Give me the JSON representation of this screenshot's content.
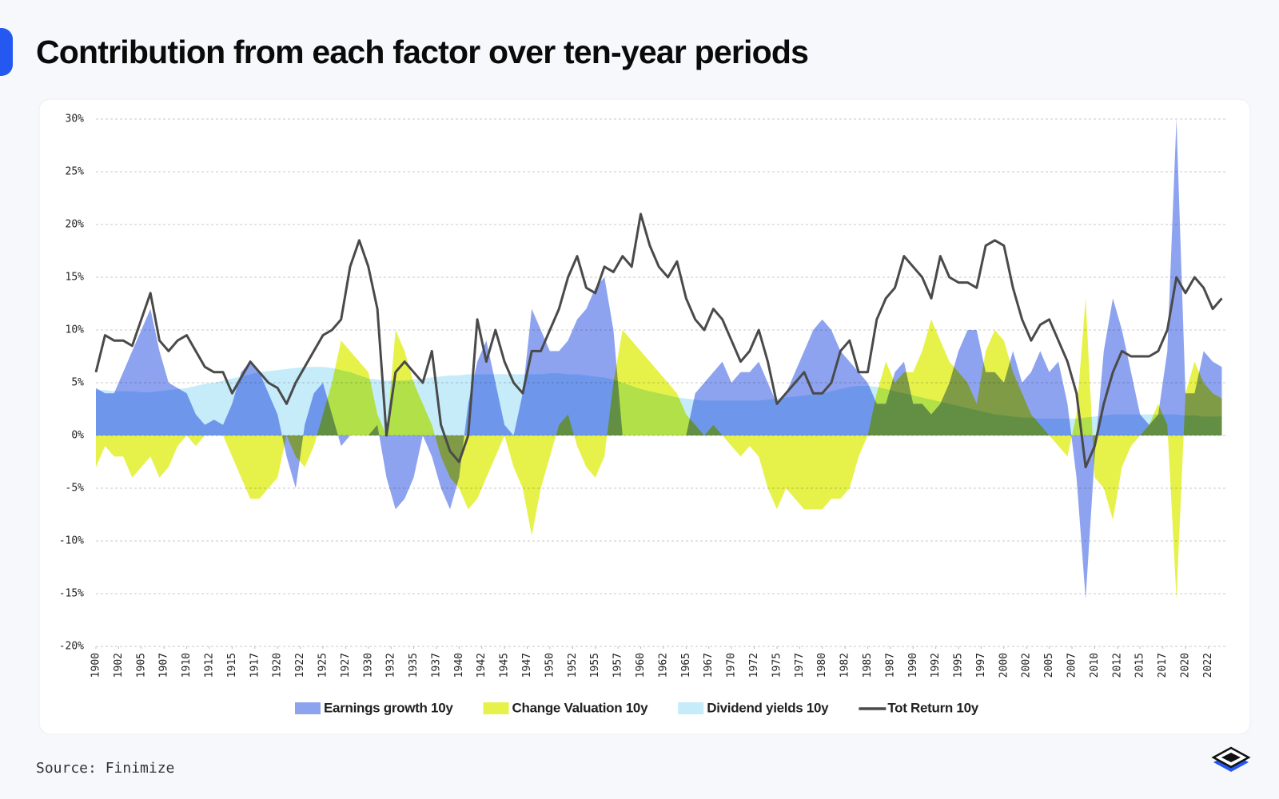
{
  "chart_data": {
    "type": "area",
    "title": "Contribution from each factor over ten-year periods",
    "source": "Source: Finimize",
    "x": [
      1900,
      1901,
      1902,
      1903,
      1904,
      1905,
      1906,
      1907,
      1908,
      1909,
      1910,
      1911,
      1912,
      1913,
      1914,
      1915,
      1916,
      1917,
      1918,
      1919,
      1920,
      1921,
      1922,
      1923,
      1924,
      1925,
      1926,
      1927,
      1928,
      1929,
      1930,
      1931,
      1932,
      1933,
      1934,
      1935,
      1936,
      1937,
      1938,
      1939,
      1940,
      1941,
      1942,
      1943,
      1944,
      1945,
      1946,
      1947,
      1948,
      1949,
      1950,
      1951,
      1952,
      1953,
      1954,
      1955,
      1956,
      1957,
      1958,
      1959,
      1960,
      1961,
      1962,
      1963,
      1964,
      1965,
      1966,
      1967,
      1968,
      1969,
      1970,
      1971,
      1972,
      1973,
      1974,
      1975,
      1976,
      1977,
      1978,
      1979,
      1980,
      1981,
      1982,
      1983,
      1984,
      1985,
      1986,
      1987,
      1988,
      1989,
      1990,
      1991,
      1992,
      1993,
      1994,
      1995,
      1996,
      1997,
      1998,
      1999,
      2000,
      2001,
      2002,
      2003,
      2004,
      2005,
      2006,
      2007,
      2008,
      2009,
      2010,
      2011,
      2012,
      2013,
      2014,
      2015,
      2016,
      2017,
      2018,
      2019,
      2020,
      2021,
      2022,
      2023,
      2024
    ],
    "series": [
      {
        "name": "Earnings growth 10y",
        "color": "#8ea3f0",
        "values": [
          4.5,
          4,
          4,
          6,
          8,
          10,
          12,
          8,
          5,
          4.5,
          4,
          2,
          1,
          1.5,
          1,
          3,
          6,
          7,
          6,
          4,
          2,
          -2,
          -5,
          1,
          4,
          5,
          2,
          -1,
          0,
          0,
          0,
          1,
          -4,
          -7,
          -6,
          -4,
          0,
          -2,
          -5,
          -7,
          -4,
          3,
          7,
          9,
          5,
          1,
          0,
          4,
          12,
          10,
          8,
          8,
          9,
          11,
          12,
          14,
          15,
          10,
          0,
          0,
          0,
          0,
          0,
          0,
          0,
          0,
          4,
          5,
          6,
          7,
          5,
          6,
          6,
          7,
          5,
          3,
          4,
          6,
          8,
          10,
          11,
          10,
          8,
          7,
          6,
          5,
          3,
          3,
          6,
          7,
          3,
          3,
          2,
          3,
          5,
          8,
          10,
          10,
          6,
          6,
          5,
          8,
          5,
          6,
          8,
          6,
          7,
          3,
          -4,
          -15.5,
          -2,
          8,
          13,
          10,
          6,
          2,
          1,
          2,
          8,
          30,
          4,
          4,
          8,
          7,
          6.5
        ]
      },
      {
        "name": "Change Valuation 10y",
        "color": "#e6f24a",
        "values": [
          -3,
          -1,
          -2,
          -2,
          -4,
          -3,
          -2,
          -4,
          -3,
          -1,
          0,
          -1,
          0,
          0,
          0,
          -2,
          -4,
          -6,
          -6,
          -5,
          -4,
          0,
          -2,
          -3,
          -1,
          2,
          5,
          9,
          8,
          7,
          6,
          2,
          0,
          10,
          8,
          5,
          3,
          1,
          -2,
          -4,
          -5,
          -7,
          -6,
          -4,
          -2,
          0,
          -3,
          -5,
          -9.5,
          -5,
          -2,
          1,
          2,
          -1,
          -3,
          -4,
          -2,
          5,
          10,
          9,
          8,
          7,
          6,
          5,
          4,
          2,
          1,
          0,
          1,
          0,
          -1,
          -2,
          -1,
          -2,
          -5,
          -7,
          -5,
          -6,
          -7,
          -7,
          -7,
          -6,
          -6,
          -5,
          -2,
          0,
          4,
          7,
          5,
          6,
          6,
          8,
          11,
          9,
          7,
          6,
          5,
          3,
          8,
          10,
          9,
          6,
          4,
          2,
          1,
          0,
          -1,
          -2,
          2,
          13,
          -4,
          -5,
          -8,
          -3,
          -1,
          0,
          1,
          3,
          1,
          -15.5,
          4,
          7,
          5,
          4,
          3.5
        ]
      },
      {
        "name": "Dividend yields 10y",
        "color": "#c6ecfa",
        "values": [
          4.3,
          4.3,
          4.2,
          4.2,
          4.2,
          4.1,
          4.1,
          4.2,
          4.3,
          4.4,
          4.5,
          4.7,
          4.9,
          5.0,
          5.2,
          5.4,
          5.6,
          5.8,
          6.0,
          6.1,
          6.2,
          6.3,
          6.4,
          6.5,
          6.5,
          6.5,
          6.4,
          6.2,
          6.0,
          5.7,
          5.4,
          5.3,
          5.2,
          5.2,
          5.2,
          5.3,
          5.4,
          5.5,
          5.6,
          5.7,
          5.7,
          5.8,
          5.8,
          5.8,
          5.8,
          5.8,
          5.8,
          5.8,
          5.8,
          5.8,
          5.9,
          5.9,
          5.8,
          5.8,
          5.7,
          5.6,
          5.5,
          5.3,
          5.0,
          4.7,
          4.4,
          4.2,
          4.0,
          3.8,
          3.6,
          3.5,
          3.4,
          3.3,
          3.3,
          3.3,
          3.3,
          3.3,
          3.3,
          3.3,
          3.4,
          3.5,
          3.6,
          3.7,
          3.8,
          3.9,
          4.0,
          4.2,
          4.4,
          4.6,
          4.7,
          4.7,
          4.6,
          4.4,
          4.2,
          4.0,
          3.8,
          3.6,
          3.4,
          3.2,
          3.0,
          2.8,
          2.6,
          2.4,
          2.2,
          2.0,
          1.9,
          1.8,
          1.7,
          1.7,
          1.6,
          1.6,
          1.6,
          1.6,
          1.6,
          1.7,
          1.8,
          1.9,
          2.0,
          2.0,
          2.0,
          2.0,
          2.0,
          2.0,
          2.0,
          2.0,
          1.9,
          1.9,
          1.8,
          1.8,
          1.8
        ]
      },
      {
        "name": "Tot Return 10y",
        "type": "line",
        "color": "#4a4a4a",
        "values": [
          6,
          9.5,
          9,
          9,
          8.5,
          11,
          13.5,
          9,
          8,
          9,
          9.5,
          8,
          6.5,
          6,
          6,
          4,
          5.5,
          7,
          6,
          5,
          4.5,
          3,
          5,
          6.5,
          8,
          9.5,
          10,
          11,
          16,
          18.5,
          16,
          12,
          0,
          6,
          7,
          6,
          5,
          8,
          1,
          -1.5,
          -2.5,
          0,
          11,
          7,
          10,
          7,
          5,
          4,
          8,
          8,
          10,
          12,
          15,
          17,
          14,
          13.5,
          16,
          15.5,
          17,
          16,
          21,
          18,
          16,
          15,
          16.5,
          13,
          11,
          10,
          12,
          11,
          9,
          7,
          8,
          10,
          7,
          3,
          4,
          5,
          6,
          4,
          4,
          5,
          8,
          9,
          6,
          6,
          11,
          13,
          14,
          17,
          16,
          15,
          13,
          17,
          15,
          14.5,
          14.5,
          14,
          18,
          18.5,
          18,
          14,
          11,
          9,
          10.5,
          11,
          9,
          7,
          4,
          -3,
          -1,
          3,
          6,
          8,
          7.5,
          7.5,
          7.5,
          8,
          10,
          15,
          13.5,
          15,
          14,
          12,
          13
        ]
      }
    ],
    "xlim": [
      1900,
      2024.4
    ],
    "ylim": [
      -20,
      30
    ],
    "yticks": [
      {
        "value": -20,
        "label": "-20%"
      },
      {
        "value": -15,
        "label": "-15%"
      },
      {
        "value": -10,
        "label": "-10%"
      },
      {
        "value": -5,
        "label": "-5%"
      },
      {
        "value": 0,
        "label": "0%"
      },
      {
        "value": 5,
        "label": "5%"
      },
      {
        "value": 10,
        "label": "10%"
      },
      {
        "value": 15,
        "label": "15%"
      },
      {
        "value": 20,
        "label": "20%"
      },
      {
        "value": 25,
        "label": "25%"
      },
      {
        "value": 30,
        "label": "30%"
      }
    ],
    "xticks": [
      1900,
      {
        "value": 1902.5,
        "label": "1902"
      },
      1905,
      {
        "value": 1907.5,
        "label": "1907"
      },
      1910,
      {
        "value": 1912.5,
        "label": "1912"
      },
      1915,
      {
        "value": 1917.5,
        "label": "1917"
      },
      1920,
      {
        "value": 1922.5,
        "label": "1922"
      },
      1925,
      {
        "value": 1927.5,
        "label": "1927"
      },
      1930,
      {
        "value": 1932.5,
        "label": "1932"
      },
      1935,
      {
        "value": 1937.5,
        "label": "1937"
      },
      1940,
      {
        "value": 1942.5,
        "label": "1942"
      },
      1945,
      {
        "value": 1947.5,
        "label": "1947"
      },
      1950,
      {
        "value": 1952.5,
        "label": "1952"
      },
      1955,
      {
        "value": 1957.5,
        "label": "1957"
      },
      1960,
      {
        "value": 1962.5,
        "label": "1962"
      },
      1965,
      {
        "value": 1967.5,
        "label": "1967"
      },
      1970,
      {
        "value": 1972.5,
        "label": "1972"
      },
      1975,
      {
        "value": 1977.5,
        "label": "1977"
      },
      1980,
      {
        "value": 1982.5,
        "label": "1982"
      },
      1985,
      {
        "value": 1987.5,
        "label": "1987"
      },
      1990,
      {
        "value": 1992.5,
        "label": "1992"
      },
      1995,
      {
        "value": 1997.5,
        "label": "1997"
      },
      2000,
      {
        "value": 2002.5,
        "label": "2002"
      },
      2005,
      {
        "value": 2007.5,
        "label": "2007"
      },
      2010,
      {
        "value": 2012.5,
        "label": "2012"
      },
      2015,
      {
        "value": 2017.5,
        "label": "2017"
      },
      2020,
      {
        "value": 2022.5,
        "label": "2022"
      }
    ],
    "grid": true
  }
}
